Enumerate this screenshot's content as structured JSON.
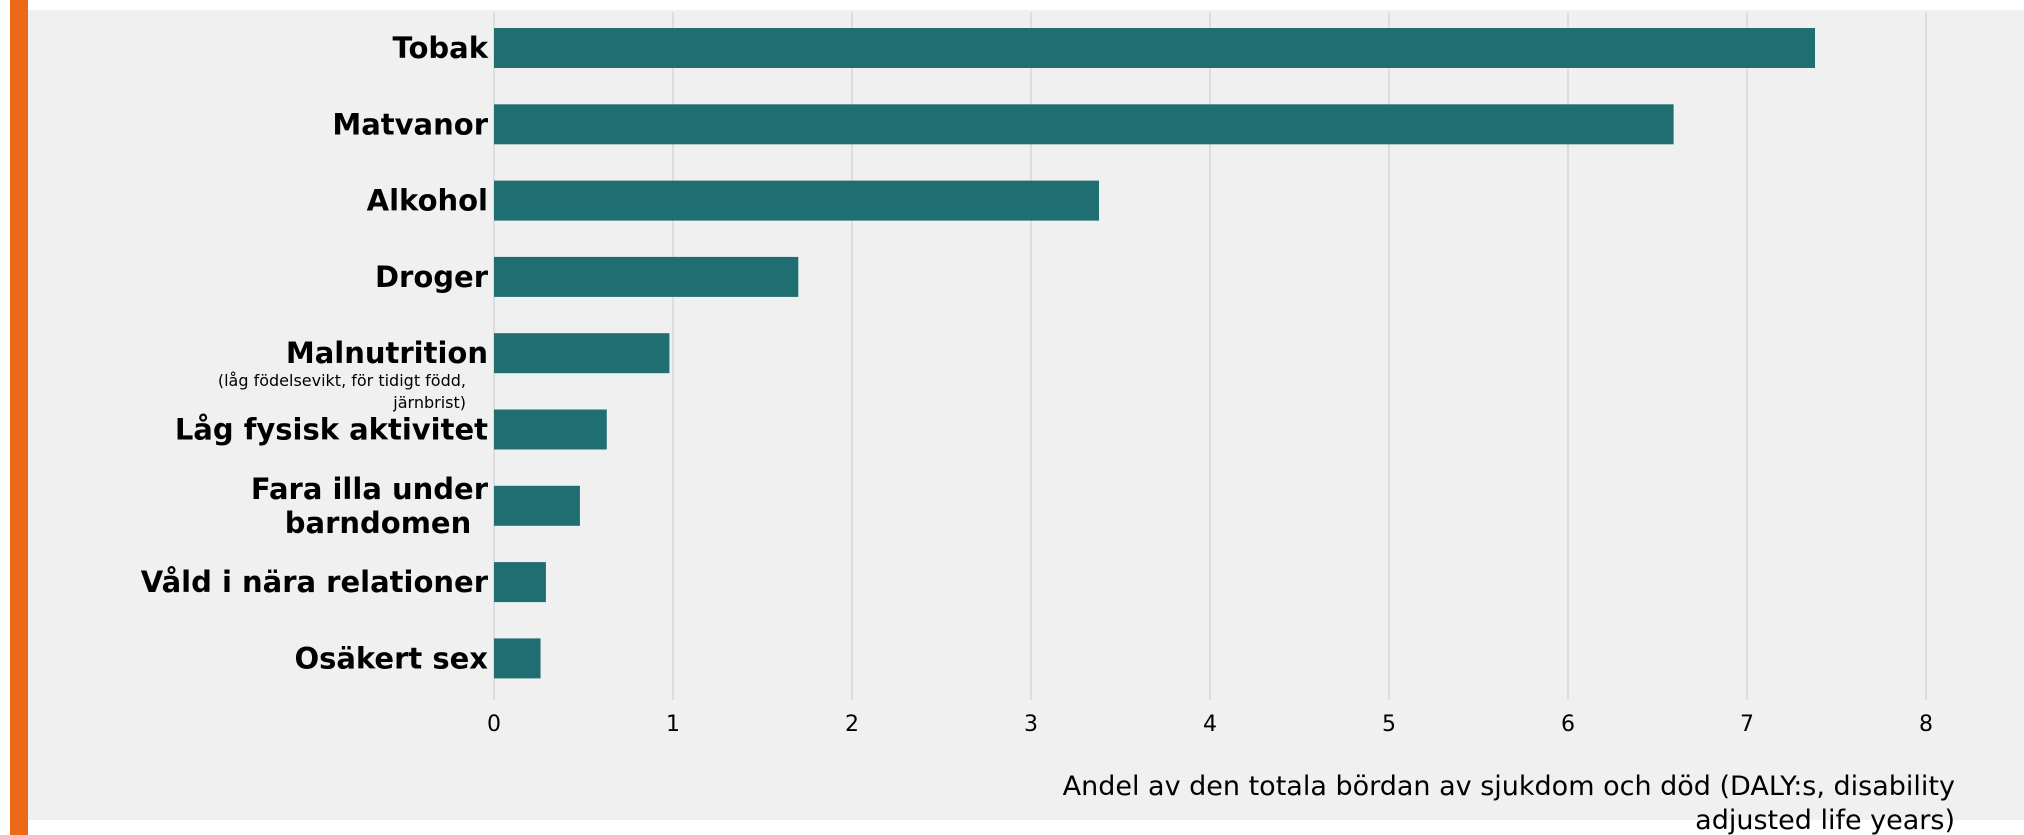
{
  "colors": {
    "bar": "#1f6f72",
    "accent": "#ec6a17",
    "panel": "#f0f0f0",
    "grid": "#d0d0d0"
  },
  "chart_data": {
    "type": "bar",
    "orientation": "horizontal",
    "categories": [
      "Tobak",
      "Matvanor",
      "Alkohol",
      "Droger",
      "Malnutrition",
      "Låg fysisk aktivitet",
      "Fara illa under barndomen",
      "Våld i nära relationer",
      "Osäkert sex"
    ],
    "category_labels": [
      [
        "Tobak"
      ],
      [
        "Matvanor"
      ],
      [
        "Alkohol"
      ],
      [
        "Droger"
      ],
      [
        "Malnutrition"
      ],
      [
        "Låg fysisk aktivitet"
      ],
      [
        "Fara illa under",
        "barndomen"
      ],
      [
        "Våld i nära relationer"
      ],
      [
        "Osäkert sex"
      ]
    ],
    "category_notes": {
      "Malnutrition": [
        "(låg födelsevikt, för tidigt född,",
        "järnbrist)"
      ]
    },
    "values": [
      7.38,
      6.59,
      3.38,
      1.7,
      0.98,
      0.63,
      0.48,
      0.29,
      0.26
    ],
    "xlim": [
      0,
      8
    ],
    "xticks": [
      "0",
      "1",
      "2",
      "3",
      "4",
      "5",
      "6",
      "7",
      "8"
    ],
    "xlabel_lines": [
      "Andel av den totala bördan av sjukdom och död (DALY:s, disability",
      "adjusted life years)"
    ],
    "grid": true
  }
}
